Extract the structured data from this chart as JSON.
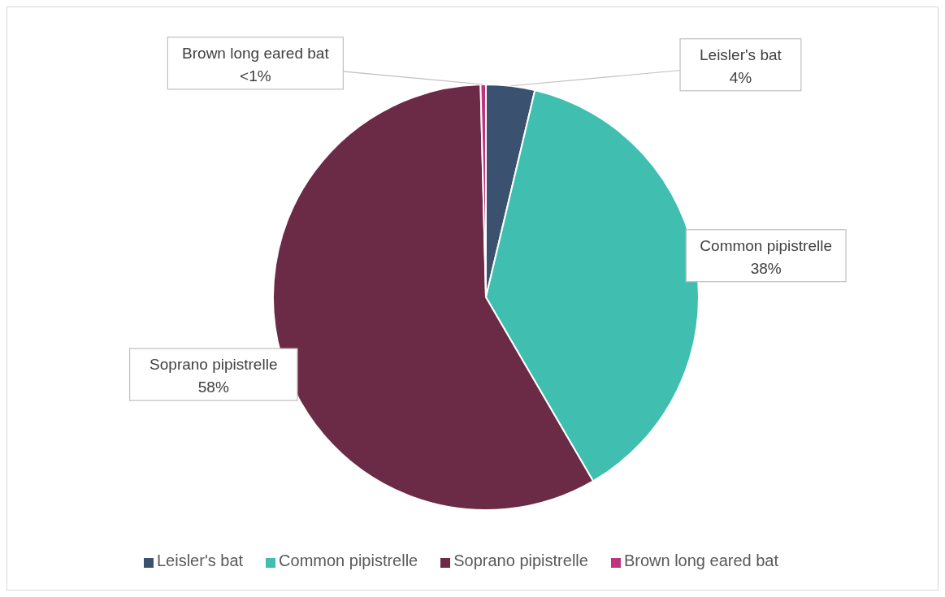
{
  "chart_data": {
    "type": "pie",
    "categories": [
      "Leisler's bat",
      "Common pipistrelle",
      "Soprano pipistrelle",
      "Brown long eared bat"
    ],
    "values": [
      3.7,
      37.9,
      58,
      0.4
    ],
    "value_labels": [
      "4%",
      "38%",
      "58%",
      "<1%"
    ],
    "colors": [
      "#3a5170",
      "#40bfb0",
      "#6b2a45",
      "#c0337f"
    ],
    "legend": "bottom"
  }
}
